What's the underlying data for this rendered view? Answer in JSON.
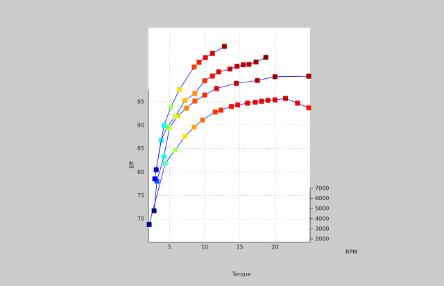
{
  "chart_data": {
    "type": "line",
    "x_label": "Torque",
    "y_label": "Eff",
    "z_label": "RPM",
    "xlim": [
      2,
      25
    ],
    "xticks": [
      5,
      10,
      15,
      20
    ],
    "ylim": [
      65,
      97.5
    ],
    "yticks": [
      70,
      75,
      80,
      85,
      90,
      95
    ],
    "zlim": [
      2000,
      7000
    ],
    "zticks": [
      2000,
      3000,
      4000,
      5000,
      6000,
      7000
    ],
    "grid": true,
    "line_color": "#0000ff",
    "colormap": "jet",
    "series": [
      {
        "z": 2000,
        "x": [
          2.1,
          4.4,
          5.8,
          7.2,
          8.5,
          9.7,
          11.5,
          12.3,
          13.8,
          14.7,
          16.1,
          17.2,
          18.1,
          19,
          20,
          21.5,
          23.2,
          24.8
        ],
        "values": [
          68.8,
          81.9,
          84.7,
          87.6,
          89.6,
          91.1,
          92.8,
          93.2,
          94,
          94.3,
          94.7,
          94.9,
          95.1,
          95.3,
          95.4,
          95.7,
          94.7,
          93.7
        ]
      },
      {
        "z": 3500,
        "x": [
          2.8,
          3.2,
          4.2,
          5,
          6.2,
          7.4,
          8.6,
          10,
          11.7,
          14.5,
          17.5,
          20,
          24.8
        ],
        "values": [
          68.5,
          74.8,
          80.1,
          86.2,
          88.8,
          90.4,
          91.9,
          93.2,
          94.6,
          95.7,
          96.3,
          97.1,
          97.2
        ]
      },
      {
        "z": 5000,
        "x": [
          2.9,
          3.8,
          4.7,
          5.8,
          7.2,
          8.6,
          10,
          11.1,
          12,
          13.6,
          14.6,
          15.5,
          16.3,
          17.3,
          18.7
        ],
        "values": [
          72.1,
          80.3,
          83.3,
          85.4,
          88.8,
          90.3,
          93,
          94,
          94.9,
          95.5,
          96.1,
          96.4,
          96.5,
          97,
          98
        ]
      },
      {
        "z": 6500,
        "x": [
          3.1,
          4.2,
          5.2,
          6.4,
          8.5,
          9.2,
          10.1,
          11.1,
          12.8
        ],
        "values": [
          70.8,
          80.2,
          84.2,
          87.9,
          92.7,
          93.7,
          94.7,
          95.6,
          97.1
        ]
      }
    ]
  }
}
